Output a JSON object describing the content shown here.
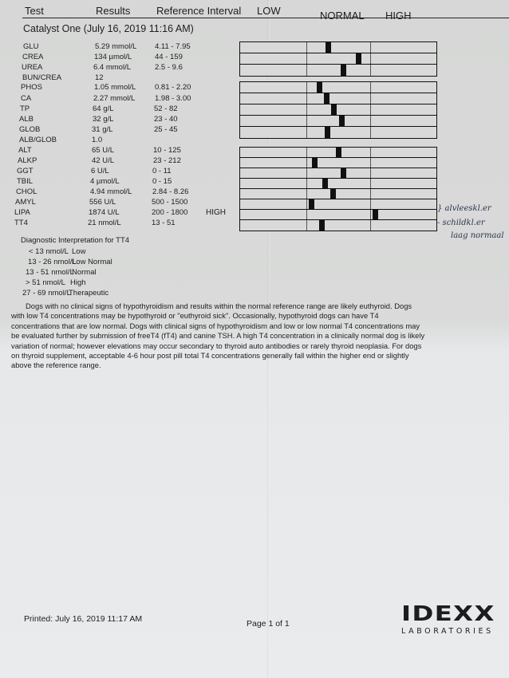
{
  "header": {
    "test": "Test",
    "results": "Results",
    "reference": "Reference Interval",
    "low": "LOW",
    "normal": "NORMAL",
    "high": "HIGH"
  },
  "section_title": "Catalyst One (July 16, 2019 11:16 AM)",
  "rows": [
    {
      "test": "GLU",
      "result": "5.29 mmol/L",
      "ref": "4.11 - 7.95",
      "flag": "",
      "value": 5.29,
      "low": 4.11,
      "high": 7.95
    },
    {
      "test": "CREA",
      "result": "134 µmol/L",
      "ref": "44 - 159",
      "flag": "",
      "value": 134,
      "low": 44,
      "high": 159
    },
    {
      "test": "UREA",
      "result": "6.4 mmol/L",
      "ref": "2.5 - 9.6",
      "flag": "",
      "value": 6.4,
      "low": 2.5,
      "high": 9.6
    },
    {
      "test": "BUN/CREA",
      "result": "12",
      "ref": "",
      "flag": ""
    },
    {
      "test": "PHOS",
      "result": "1.05 mmol/L",
      "ref": "0.81 - 2.20",
      "flag": "",
      "value": 1.05,
      "low": 0.81,
      "high": 2.2
    },
    {
      "test": "CA",
      "result": "2.27 mmol/L",
      "ref": "1.98 - 3.00",
      "flag": "",
      "value": 2.27,
      "low": 1.98,
      "high": 3.0
    },
    {
      "test": "TP",
      "result": "64 g/L",
      "ref": "52 - 82",
      "flag": "",
      "value": 64,
      "low": 52,
      "high": 82
    },
    {
      "test": "ALB",
      "result": "32 g/L",
      "ref": "23 - 40",
      "flag": "",
      "value": 32,
      "low": 23,
      "high": 40
    },
    {
      "test": "GLOB",
      "result": "31 g/L",
      "ref": "25 - 45",
      "flag": "",
      "value": 31,
      "low": 25,
      "high": 45
    },
    {
      "test": "ALB/GLOB",
      "result": "1.0",
      "ref": "",
      "flag": ""
    },
    {
      "test": "ALT",
      "result": "65 U/L",
      "ref": "10 - 125",
      "flag": "",
      "value": 65,
      "low": 10,
      "high": 125
    },
    {
      "test": "ALKP",
      "result": "42 U/L",
      "ref": "23 - 212",
      "flag": "",
      "value": 42,
      "low": 23,
      "high": 212
    },
    {
      "test": "GGT",
      "result": "6 U/L",
      "ref": "0 - 11",
      "flag": "",
      "value": 6,
      "low": 0,
      "high": 11
    },
    {
      "test": "TBIL",
      "result": "4 µmol/L",
      "ref": "0 - 15",
      "flag": "",
      "value": 4,
      "low": 0,
      "high": 15
    },
    {
      "test": "CHOL",
      "result": "4.94 mmol/L",
      "ref": "2.84 - 8.26",
      "flag": "",
      "value": 4.94,
      "low": 2.84,
      "high": 8.26
    },
    {
      "test": "AMYL",
      "result": "556 U/L",
      "ref": "500 - 1500",
      "flag": "",
      "value": 556,
      "low": 500,
      "high": 1500
    },
    {
      "test": "LIPA",
      "result": "1874 U/L",
      "ref": "200 - 1800",
      "flag": "HIGH",
      "value": 1874,
      "low": 200,
      "high": 1800
    },
    {
      "test": "TT4",
      "result": "21 nmol/L",
      "ref": "13 - 51",
      "flag": "",
      "value": 21,
      "low": 13,
      "high": 51
    }
  ],
  "bar_groups": [
    [
      0,
      1,
      2
    ],
    [
      4,
      5,
      6,
      7,
      8
    ],
    [
      10,
      11,
      12,
      13,
      14,
      15,
      16,
      17
    ]
  ],
  "handwriting": [
    "} alvleeskl.er",
    "- schildkl.er",
    "laag normaal"
  ],
  "interpretation": {
    "title": "Diagnostic Interpretation for TT4",
    "items": [
      {
        "range": "< 13 nmol/L",
        "label": "Low"
      },
      {
        "range": "13 - 26 nmol/L",
        "label": "Low Normal"
      },
      {
        "range": "13 - 51 nmol/L",
        "label": "Normal"
      },
      {
        "range": "> 51 nmol/L",
        "label": "High"
      },
      {
        "range": "27 - 69 nmol/L",
        "label": "Therapeutic"
      }
    ],
    "paragraph": "Dogs with no clinical signs of hypothyroidism and results within the normal reference range are likely euthyroid. Dogs with low T4 concentrations may be hypothyroid or \"euthyroid sick\". Occasionally, hypothyroid dogs can have T4 concentrations that are low normal. Dogs with clinical signs of hypothyroidism and low or low normal T4 concentrations may be evaluated further by submission of freeT4 (fT4) and canine TSH. A high T4 concentration in a clinically normal dog is likely variation of normal; however elevations may occur secondary to thyroid auto antibodies or rarely thyroid neoplasia. For dogs on thyroid supplement, acceptable 4-6 hour post pill total T4 concentrations generally fall within the higher end or slightly above the reference range."
  },
  "footer": {
    "printed": "Printed: July 16, 2019 11:17 AM",
    "page": "Page 1 of 1",
    "logo_main": "IDEXX",
    "logo_sub": "LABORATORIES"
  }
}
